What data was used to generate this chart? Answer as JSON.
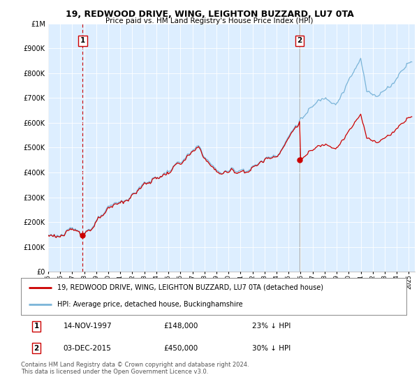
{
  "title": "19, REDWOOD DRIVE, WING, LEIGHTON BUZZARD, LU7 0TA",
  "subtitle": "Price paid vs. HM Land Registry's House Price Index (HPI)",
  "ytick_vals": [
    0,
    100000,
    200000,
    300000,
    400000,
    500000,
    600000,
    700000,
    800000,
    900000,
    1000000
  ],
  "ylim": [
    0,
    1000000
  ],
  "xlim_start": 1995.0,
  "xlim_end": 2025.5,
  "hpi_color": "#7ab4d8",
  "price_color": "#cc0000",
  "vline1_color": "#cc0000",
  "vline2_color": "#aaaaaa",
  "bg_fill_color": "#ddeeff",
  "point1_x": 1997.87,
  "point1_y": 148000,
  "point2_x": 2015.92,
  "point2_y": 450000,
  "point1_label": "1",
  "point2_label": "2",
  "legend_line1": "19, REDWOOD DRIVE, WING, LEIGHTON BUZZARD, LU7 0TA (detached house)",
  "legend_line2": "HPI: Average price, detached house, Buckinghamshire",
  "annotation1_date": "14-NOV-1997",
  "annotation1_price": "£148,000",
  "annotation1_hpi": "23% ↓ HPI",
  "annotation2_date": "03-DEC-2015",
  "annotation2_price": "£450,000",
  "annotation2_hpi": "30% ↓ HPI",
  "footer": "Contains HM Land Registry data © Crown copyright and database right 2024.\nThis data is licensed under the Open Government Licence v3.0.",
  "background_color": "#ffffff",
  "grid_color": "#cccccc",
  "hpi_ratio_1": 0.77,
  "hpi_ratio_2": 0.7
}
